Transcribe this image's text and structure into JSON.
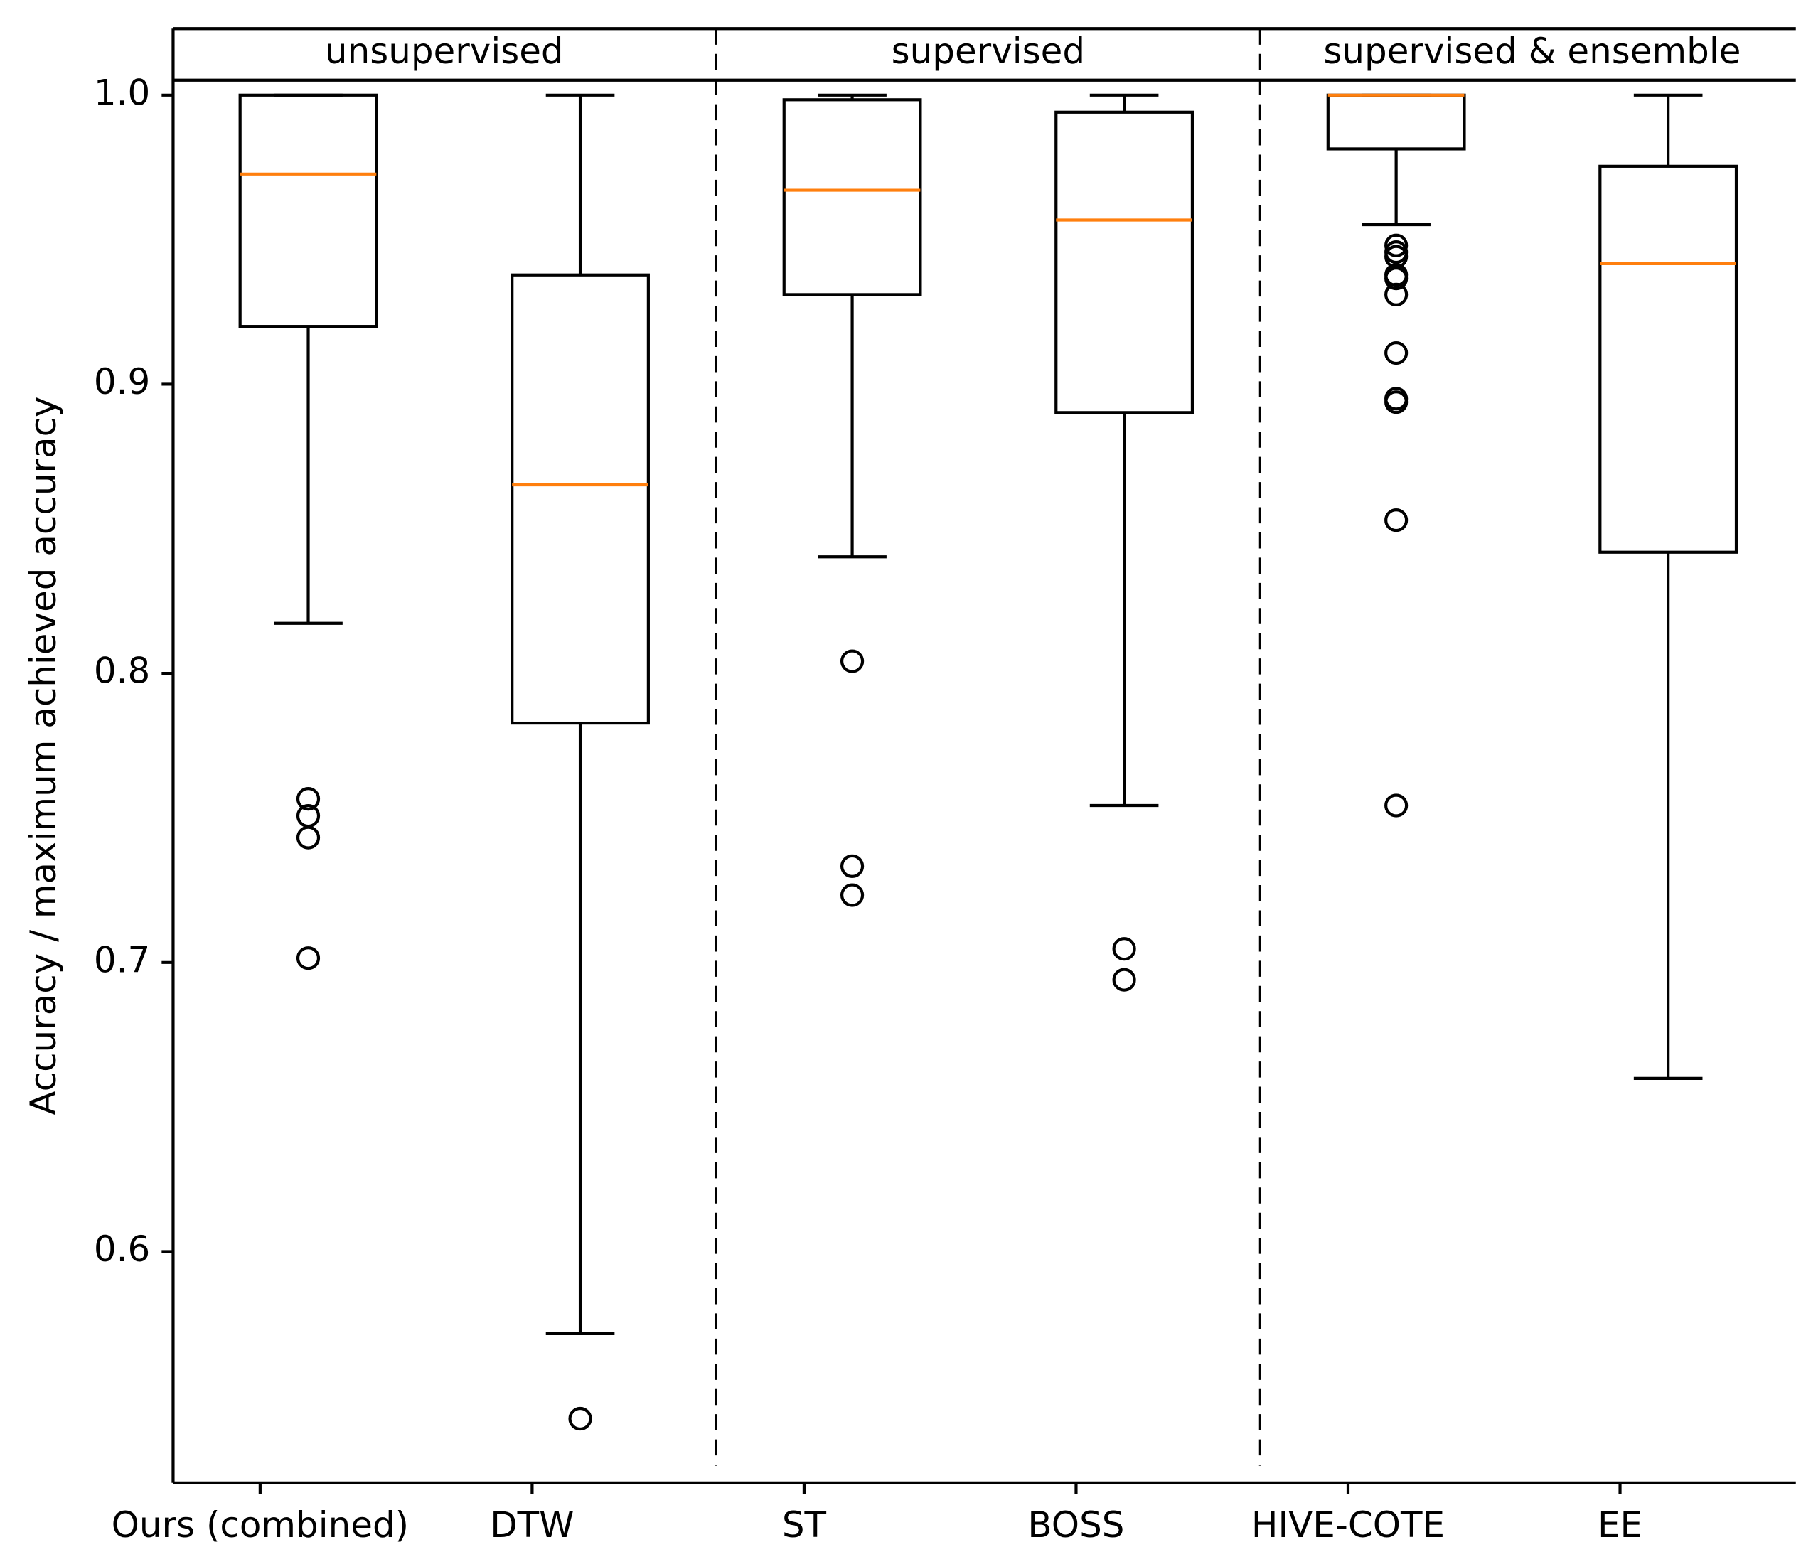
{
  "chart_data": {
    "type": "boxplot",
    "ylabel": "Accuracy / maximum achieved accuracy",
    "groups": [
      "unsupervised",
      "supervised",
      "supervised & ensemble"
    ],
    "categories": [
      "Ours (combined)",
      "DTW",
      "ST",
      "BOSS",
      "HIVE-COTE",
      "EE"
    ],
    "median_color": "#ff7f0e",
    "box_color": "#000000",
    "boxes": [
      {
        "whislo": 0.8173,
        "q1": 0.92,
        "med": 0.9727,
        "q3": 1.0,
        "whishi": 1.0,
        "fliers": [
          0.7566,
          0.7507,
          0.7432,
          0.7015
        ]
      },
      {
        "whislo": 0.5716,
        "q1": 0.7828,
        "med": 0.8652,
        "q3": 0.9378,
        "whishi": 1.0,
        "fliers": [
          0.5422
        ]
      },
      {
        "whislo": 0.8403,
        "q1": 0.931,
        "med": 0.9671,
        "q3": 0.9984,
        "whishi": 1.0,
        "fliers": [
          0.8042,
          0.7333,
          0.7233
        ]
      },
      {
        "whislo": 0.7543,
        "q1": 0.8902,
        "med": 0.9568,
        "q3": 0.9941,
        "whishi": 1.0,
        "fliers": [
          0.7047,
          0.694
        ]
      },
      {
        "whislo": 0.9552,
        "q1": 0.9814,
        "med": 1.0,
        "q3": 1.0,
        "whishi": 1.0,
        "fliers": [
          0.948,
          0.9457,
          0.9441,
          0.9378,
          0.9366,
          0.931,
          0.9108,
          0.895,
          0.8938,
          0.853,
          0.7543
        ]
      },
      {
        "whislo": 0.6599,
        "q1": 0.8419,
        "med": 0.9417,
        "q3": 0.9754,
        "whishi": 1.0,
        "fliers": []
      }
    ],
    "ylim": [
      0.52,
      1.023
    ],
    "yticks": [
      0.6,
      0.7,
      0.8,
      0.9,
      {
        "value": 1,
        "label": "1.0"
      }
    ]
  }
}
